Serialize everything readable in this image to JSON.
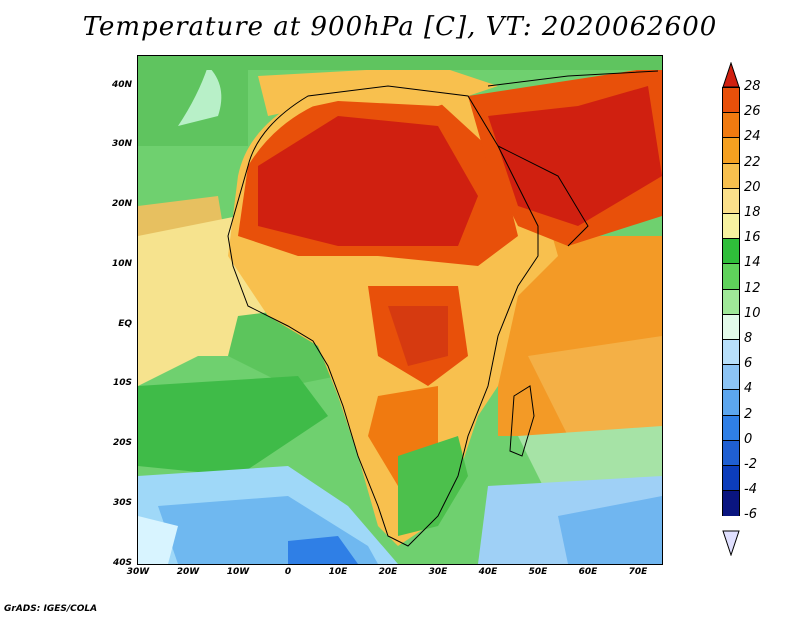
{
  "title": "Temperature at 900hPa [C], VT: 2020062600",
  "credit": "GrADS: IGES/COLA",
  "map": {
    "lat_labels": [
      "40N",
      "30N",
      "20N",
      "10N",
      "EQ",
      "10S",
      "20S",
      "30S",
      "40S"
    ],
    "lon_labels": [
      "30W",
      "20W",
      "10W",
      "0",
      "10E",
      "20E",
      "30E",
      "40E",
      "50E",
      "60E",
      "70E"
    ],
    "lat_range": [
      -40,
      45
    ],
    "lon_range": [
      -30,
      75
    ]
  },
  "colorbar": {
    "labels": [
      "28",
      "26",
      "24",
      "22",
      "20",
      "18",
      "16",
      "14",
      "12",
      "10",
      "8",
      "6",
      "4",
      "2",
      "0",
      "-2",
      "-4",
      "-6"
    ],
    "colors": [
      "#d02010",
      "#e8500a",
      "#f07a10",
      "#f5a020",
      "#f8c04e",
      "#fbe08a",
      "#f7f2a0",
      "#2fbe3a",
      "#5fd25b",
      "#9fe898",
      "#e3fbea",
      "#b8e0fb",
      "#8cc4f5",
      "#5ca6ee",
      "#2f7fe6",
      "#1f5fd2",
      "#0c3dbb",
      "#0a1580"
    ],
    "over_color": "#d02010",
    "under_color": "#e0e0ff"
  }
}
